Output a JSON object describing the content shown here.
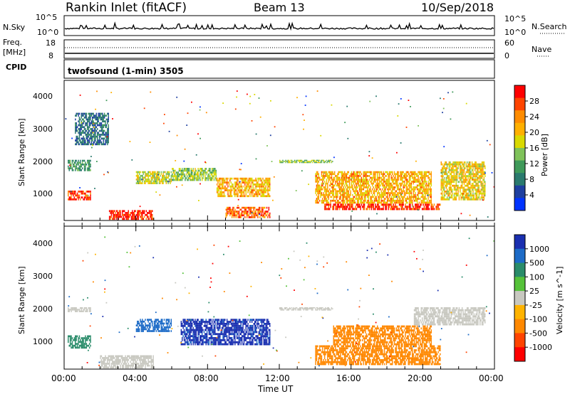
{
  "header": {
    "station": "Rankin Inlet (fitACF)",
    "beam": "Beam 13",
    "date": "10/Sep/2018"
  },
  "noise_panel": {
    "left_label": "N.Sky",
    "right_label": "N.Search",
    "left_ticks": [
      "10^5",
      "10^0"
    ],
    "right_ticks": [
      "10^5",
      "10^0"
    ]
  },
  "freq_panel": {
    "left_label_1": "Freq.",
    "left_label_2": "[MHz]",
    "left_ticks": [
      "18",
      "8"
    ],
    "right_label": "Nave",
    "right_ticks": [
      "60",
      "0"
    ]
  },
  "cpid": {
    "label": "CPID",
    "mode": "twofsound (1-min) 3505"
  },
  "power_panel": {
    "ylabel": "Slant Range [km]",
    "yticks": [
      "4000",
      "3000",
      "2000",
      "1000"
    ],
    "colorbar_label": "Power [dB]",
    "colorbar_ticks": [
      "28",
      "24",
      "20",
      "16",
      "12",
      "8",
      "4"
    ],
    "colors": [
      "#ff0000",
      "#ff4400",
      "#ff8c00",
      "#ffb000",
      "#d9d900",
      "#7fc25a",
      "#3f9a5a",
      "#2a7a6e",
      "#1e3fa0",
      "#0033ff"
    ]
  },
  "velocity_panel": {
    "ylabel": "Slant Range [km]",
    "yticks": [
      "4000",
      "3000",
      "2000",
      "1000"
    ],
    "colorbar_label": "Velocity [m s^-1]",
    "colorbar_ticks": [
      "1000",
      "500",
      "100",
      "25",
      "-25",
      "-100",
      "-500",
      "-1000"
    ],
    "colors": [
      "#1a2fb0",
      "#1d6bc7",
      "#2a8c6a",
      "#56c23a",
      "#c8c8c0",
      "#ffb300",
      "#ff8800",
      "#ff4400",
      "#ff0000"
    ]
  },
  "xaxis": {
    "label": "Time UT",
    "ticks": [
      "00:00",
      "04:00",
      "08:00",
      "12:00",
      "16:00",
      "20:00",
      "00:00"
    ]
  },
  "chart_data": [
    {
      "type": "heatmap",
      "title": "Power",
      "x_range": [
        "00:00",
        "24:00"
      ],
      "y_range_km": [
        180,
        4500
      ],
      "colorbar": {
        "min": 0,
        "max": 30,
        "unit": "dB"
      },
      "regions": [
        {
          "t": [
            0.2,
            1.5
          ],
          "km": [
            800,
            1100
          ],
          "value": 27
        },
        {
          "t": [
            0.2,
            1.5
          ],
          "km": [
            1700,
            2050
          ],
          "value": 10
        },
        {
          "t": [
            0.6,
            2.5
          ],
          "km": [
            2500,
            3500
          ],
          "value": 7
        },
        {
          "t": [
            2.5,
            5.0
          ],
          "km": [
            200,
            500
          ],
          "value": 28
        },
        {
          "t": [
            4.0,
            6.0
          ],
          "km": [
            1300,
            1700
          ],
          "value": 16
        },
        {
          "t": [
            6.0,
            8.5
          ],
          "km": [
            1400,
            1800
          ],
          "value": 14
        },
        {
          "t": [
            8.5,
            11.5
          ],
          "km": [
            900,
            1500
          ],
          "value": 20
        },
        {
          "t": [
            9.0,
            11.5
          ],
          "km": [
            250,
            600
          ],
          "value": 24
        },
        {
          "t": [
            12.0,
            15.0
          ],
          "km": [
            1950,
            2050
          ],
          "value": 14
        },
        {
          "t": [
            14.5,
            21.0
          ],
          "km": [
            500,
            700
          ],
          "value": 28
        },
        {
          "t": [
            14.0,
            20.5
          ],
          "km": [
            700,
            1700
          ],
          "value": 20
        },
        {
          "t": [
            21.0,
            23.5
          ],
          "km": [
            800,
            2000
          ],
          "value": 18
        }
      ]
    },
    {
      "type": "heatmap",
      "title": "Velocity",
      "x_range": [
        "00:00",
        "24:00"
      ],
      "y_range_km": [
        180,
        4500
      ],
      "colorbar": {
        "min": -1000,
        "max": 1000,
        "unit": "m s^-1"
      },
      "regions": [
        {
          "t": [
            0.2,
            1.5
          ],
          "km": [
            800,
            1200
          ],
          "value": 300
        },
        {
          "t": [
            0.2,
            1.5
          ],
          "km": [
            1900,
            2050
          ],
          "value": 0
        },
        {
          "t": [
            2.0,
            5.0
          ],
          "km": [
            200,
            600
          ],
          "value": 0
        },
        {
          "t": [
            4.0,
            6.0
          ],
          "km": [
            1300,
            1700
          ],
          "value": 600
        },
        {
          "t": [
            6.5,
            11.5
          ],
          "km": [
            900,
            1700
          ],
          "value": 900
        },
        {
          "t": [
            12.0,
            15.0
          ],
          "km": [
            1950,
            2050
          ],
          "value": 0
        },
        {
          "t": [
            14.0,
            21.0
          ],
          "km": [
            300,
            900
          ],
          "value": -300
        },
        {
          "t": [
            15.0,
            20.5
          ],
          "km": [
            900,
            1500
          ],
          "value": -150
        },
        {
          "t": [
            19.5,
            23.5
          ],
          "km": [
            1500,
            2050
          ],
          "value": 0
        }
      ]
    }
  ]
}
